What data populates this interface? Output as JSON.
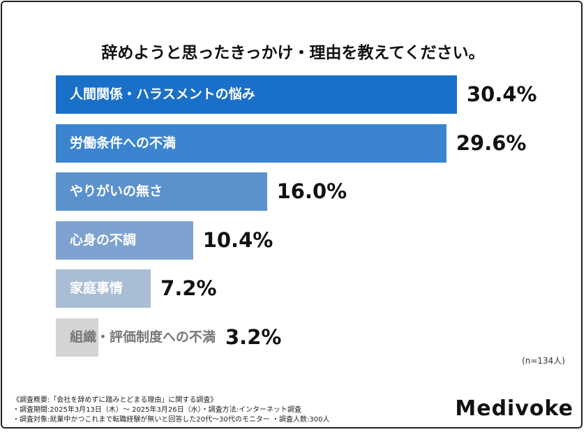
{
  "chart_data": {
    "type": "bar",
    "orientation": "horizontal",
    "title": "辞めようと思ったきっかけ・理由を教えてください。",
    "categories": [
      "人間関係・ハラスメントの悩み",
      "労働条件への不満",
      "やりがいの無さ",
      "心身の不調",
      "家庭事情",
      "組織・評価制度への不満"
    ],
    "values": [
      30.4,
      29.6,
      16.0,
      10.4,
      7.2,
      3.2
    ],
    "value_labels": [
      "30.4%",
      "29.6%",
      "16.0%",
      "10.4%",
      "7.2%",
      "3.2%"
    ],
    "colors": [
      "#1a6fc8",
      "#3a84d0",
      "#5b92cd",
      "#7ea2cf",
      "#a9bdd4",
      "#d4d4d4"
    ],
    "label_colors": [
      "#ffffff",
      "#ffffff",
      "#ffffff",
      "#ffffff",
      "#ffffff",
      "#777777"
    ],
    "unit": "%",
    "grid": false
  },
  "sample_size": "(n=134人)",
  "notes": [
    "《調査概要:「会社を辞めずに踏みとどまる理由」に関する調査》",
    "・調査期間:2025年3月13日（木）～ 2025年3月26日（水）・調査方法:インターネット調査",
    "・調査対象:就業中かつこれまで転職経験が無いと回答した20代～30代のモニター ・調査人数:300人"
  ],
  "logo": "Medivoke"
}
